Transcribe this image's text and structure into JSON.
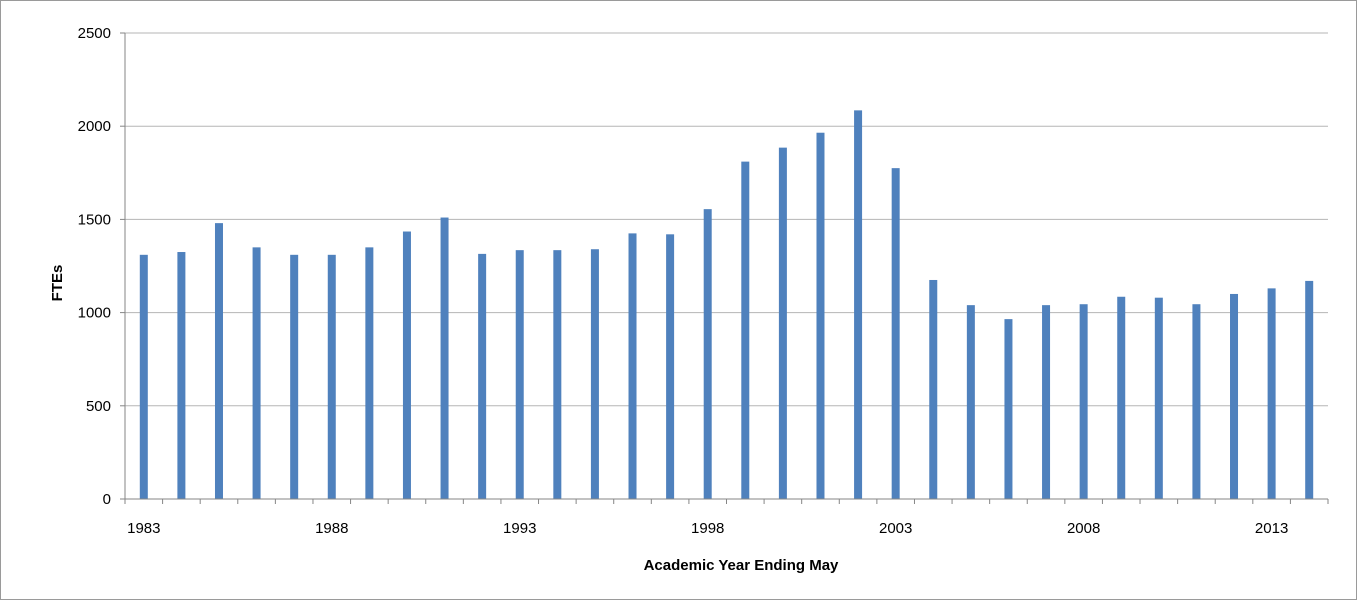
{
  "chart_data": {
    "type": "bar",
    "xlabel": "Academic Year Ending May",
    "ylabel": "FTEs",
    "ylim": [
      0,
      2500
    ],
    "yticks": [
      0,
      500,
      1000,
      1500,
      2000,
      2500
    ],
    "xtick_labels": [
      "1983",
      "1988",
      "1993",
      "1998",
      "2003",
      "2008",
      "2013"
    ],
    "grid": "horizontal",
    "bar_color": "#4f81bd",
    "categories": [
      "1983",
      "1984",
      "1985",
      "1986",
      "1987",
      "1988",
      "1989",
      "1990",
      "1991",
      "1992",
      "1993",
      "1994",
      "1995",
      "1996",
      "1997",
      "1998",
      "1999",
      "2000",
      "2001",
      "2002",
      "2003",
      "2004",
      "2005",
      "2006",
      "2007",
      "2008",
      "2009",
      "2010",
      "2011",
      "2012",
      "2013",
      "2014"
    ],
    "values": [
      1310,
      1325,
      1480,
      1350,
      1310,
      1310,
      1350,
      1435,
      1510,
      1315,
      1335,
      1335,
      1340,
      1425,
      1420,
      1555,
      1810,
      1885,
      1965,
      2085,
      1775,
      1175,
      1040,
      965,
      1040,
      1045,
      1085,
      1080,
      1045,
      1100,
      1130,
      1170
    ]
  }
}
